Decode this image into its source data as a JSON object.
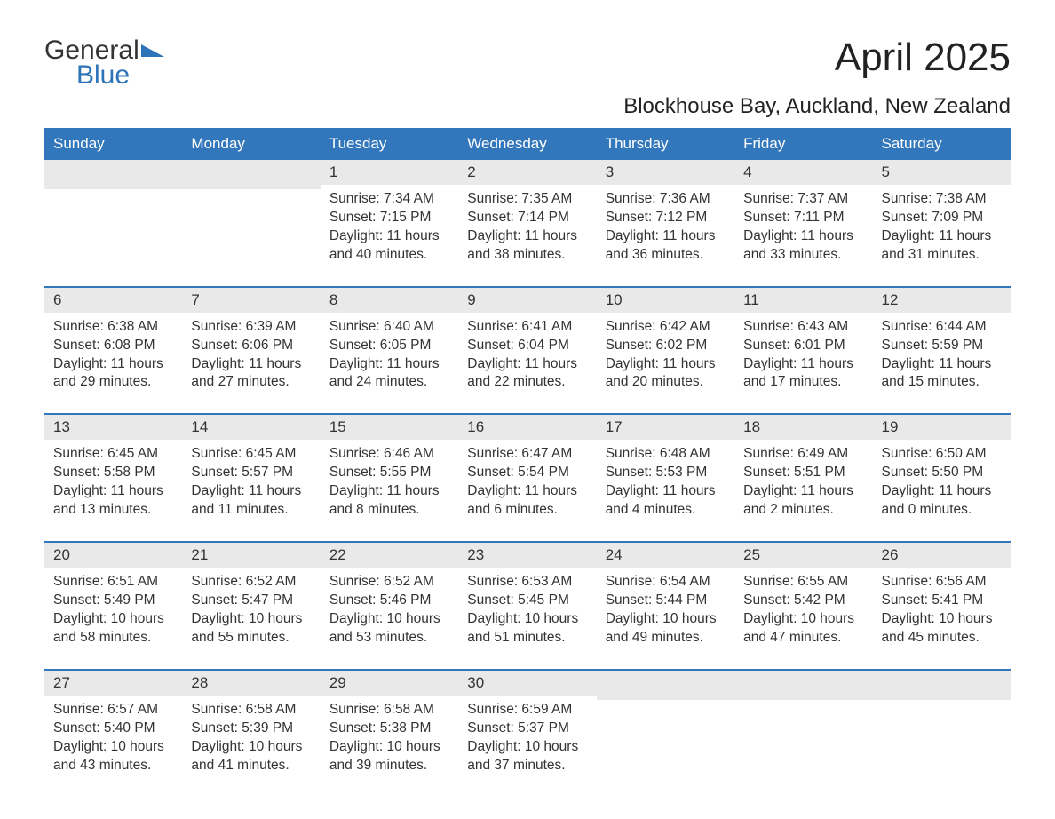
{
  "logo": {
    "line1": "General",
    "line2": "Blue",
    "flag_color": "#2d73b8"
  },
  "title": "April 2025",
  "location": "Blockhouse Bay, Auckland, New Zealand",
  "style": {
    "header_bg": "#3277bb",
    "header_text": "#ffffff",
    "date_bar_bg": "#e9e9e9",
    "week_border": "#3277bb",
    "body_text": "#333333",
    "background": "#ffffff",
    "title_fontsize": 44,
    "location_fontsize": 24,
    "header_fontsize": 17,
    "date_fontsize": 17,
    "content_fontsize": 15.5
  },
  "day_headers": [
    "Sunday",
    "Monday",
    "Tuesday",
    "Wednesday",
    "Thursday",
    "Friday",
    "Saturday"
  ],
  "weeks": [
    {
      "days": [
        {
          "date": "",
          "sunrise": "",
          "sunset": "",
          "daylight": ""
        },
        {
          "date": "",
          "sunrise": "",
          "sunset": "",
          "daylight": ""
        },
        {
          "date": "1",
          "sunrise": "Sunrise: 7:34 AM",
          "sunset": "Sunset: 7:15 PM",
          "daylight": "Daylight: 11 hours and 40 minutes."
        },
        {
          "date": "2",
          "sunrise": "Sunrise: 7:35 AM",
          "sunset": "Sunset: 7:14 PM",
          "daylight": "Daylight: 11 hours and 38 minutes."
        },
        {
          "date": "3",
          "sunrise": "Sunrise: 7:36 AM",
          "sunset": "Sunset: 7:12 PM",
          "daylight": "Daylight: 11 hours and 36 minutes."
        },
        {
          "date": "4",
          "sunrise": "Sunrise: 7:37 AM",
          "sunset": "Sunset: 7:11 PM",
          "daylight": "Daylight: 11 hours and 33 minutes."
        },
        {
          "date": "5",
          "sunrise": "Sunrise: 7:38 AM",
          "sunset": "Sunset: 7:09 PM",
          "daylight": "Daylight: 11 hours and 31 minutes."
        }
      ]
    },
    {
      "days": [
        {
          "date": "6",
          "sunrise": "Sunrise: 6:38 AM",
          "sunset": "Sunset: 6:08 PM",
          "daylight": "Daylight: 11 hours and 29 minutes."
        },
        {
          "date": "7",
          "sunrise": "Sunrise: 6:39 AM",
          "sunset": "Sunset: 6:06 PM",
          "daylight": "Daylight: 11 hours and 27 minutes."
        },
        {
          "date": "8",
          "sunrise": "Sunrise: 6:40 AM",
          "sunset": "Sunset: 6:05 PM",
          "daylight": "Daylight: 11 hours and 24 minutes."
        },
        {
          "date": "9",
          "sunrise": "Sunrise: 6:41 AM",
          "sunset": "Sunset: 6:04 PM",
          "daylight": "Daylight: 11 hours and 22 minutes."
        },
        {
          "date": "10",
          "sunrise": "Sunrise: 6:42 AM",
          "sunset": "Sunset: 6:02 PM",
          "daylight": "Daylight: 11 hours and 20 minutes."
        },
        {
          "date": "11",
          "sunrise": "Sunrise: 6:43 AM",
          "sunset": "Sunset: 6:01 PM",
          "daylight": "Daylight: 11 hours and 17 minutes."
        },
        {
          "date": "12",
          "sunrise": "Sunrise: 6:44 AM",
          "sunset": "Sunset: 5:59 PM",
          "daylight": "Daylight: 11 hours and 15 minutes."
        }
      ]
    },
    {
      "days": [
        {
          "date": "13",
          "sunrise": "Sunrise: 6:45 AM",
          "sunset": "Sunset: 5:58 PM",
          "daylight": "Daylight: 11 hours and 13 minutes."
        },
        {
          "date": "14",
          "sunrise": "Sunrise: 6:45 AM",
          "sunset": "Sunset: 5:57 PM",
          "daylight": "Daylight: 11 hours and 11 minutes."
        },
        {
          "date": "15",
          "sunrise": "Sunrise: 6:46 AM",
          "sunset": "Sunset: 5:55 PM",
          "daylight": "Daylight: 11 hours and 8 minutes."
        },
        {
          "date": "16",
          "sunrise": "Sunrise: 6:47 AM",
          "sunset": "Sunset: 5:54 PM",
          "daylight": "Daylight: 11 hours and 6 minutes."
        },
        {
          "date": "17",
          "sunrise": "Sunrise: 6:48 AM",
          "sunset": "Sunset: 5:53 PM",
          "daylight": "Daylight: 11 hours and 4 minutes."
        },
        {
          "date": "18",
          "sunrise": "Sunrise: 6:49 AM",
          "sunset": "Sunset: 5:51 PM",
          "daylight": "Daylight: 11 hours and 2 minutes."
        },
        {
          "date": "19",
          "sunrise": "Sunrise: 6:50 AM",
          "sunset": "Sunset: 5:50 PM",
          "daylight": "Daylight: 11 hours and 0 minutes."
        }
      ]
    },
    {
      "days": [
        {
          "date": "20",
          "sunrise": "Sunrise: 6:51 AM",
          "sunset": "Sunset: 5:49 PM",
          "daylight": "Daylight: 10 hours and 58 minutes."
        },
        {
          "date": "21",
          "sunrise": "Sunrise: 6:52 AM",
          "sunset": "Sunset: 5:47 PM",
          "daylight": "Daylight: 10 hours and 55 minutes."
        },
        {
          "date": "22",
          "sunrise": "Sunrise: 6:52 AM",
          "sunset": "Sunset: 5:46 PM",
          "daylight": "Daylight: 10 hours and 53 minutes."
        },
        {
          "date": "23",
          "sunrise": "Sunrise: 6:53 AM",
          "sunset": "Sunset: 5:45 PM",
          "daylight": "Daylight: 10 hours and 51 minutes."
        },
        {
          "date": "24",
          "sunrise": "Sunrise: 6:54 AM",
          "sunset": "Sunset: 5:44 PM",
          "daylight": "Daylight: 10 hours and 49 minutes."
        },
        {
          "date": "25",
          "sunrise": "Sunrise: 6:55 AM",
          "sunset": "Sunset: 5:42 PM",
          "daylight": "Daylight: 10 hours and 47 minutes."
        },
        {
          "date": "26",
          "sunrise": "Sunrise: 6:56 AM",
          "sunset": "Sunset: 5:41 PM",
          "daylight": "Daylight: 10 hours and 45 minutes."
        }
      ]
    },
    {
      "days": [
        {
          "date": "27",
          "sunrise": "Sunrise: 6:57 AM",
          "sunset": "Sunset: 5:40 PM",
          "daylight": "Daylight: 10 hours and 43 minutes."
        },
        {
          "date": "28",
          "sunrise": "Sunrise: 6:58 AM",
          "sunset": "Sunset: 5:39 PM",
          "daylight": "Daylight: 10 hours and 41 minutes."
        },
        {
          "date": "29",
          "sunrise": "Sunrise: 6:58 AM",
          "sunset": "Sunset: 5:38 PM",
          "daylight": "Daylight: 10 hours and 39 minutes."
        },
        {
          "date": "30",
          "sunrise": "Sunrise: 6:59 AM",
          "sunset": "Sunset: 5:37 PM",
          "daylight": "Daylight: 10 hours and 37 minutes."
        },
        {
          "date": "",
          "sunrise": "",
          "sunset": "",
          "daylight": ""
        },
        {
          "date": "",
          "sunrise": "",
          "sunset": "",
          "daylight": ""
        },
        {
          "date": "",
          "sunrise": "",
          "sunset": "",
          "daylight": ""
        }
      ]
    }
  ]
}
